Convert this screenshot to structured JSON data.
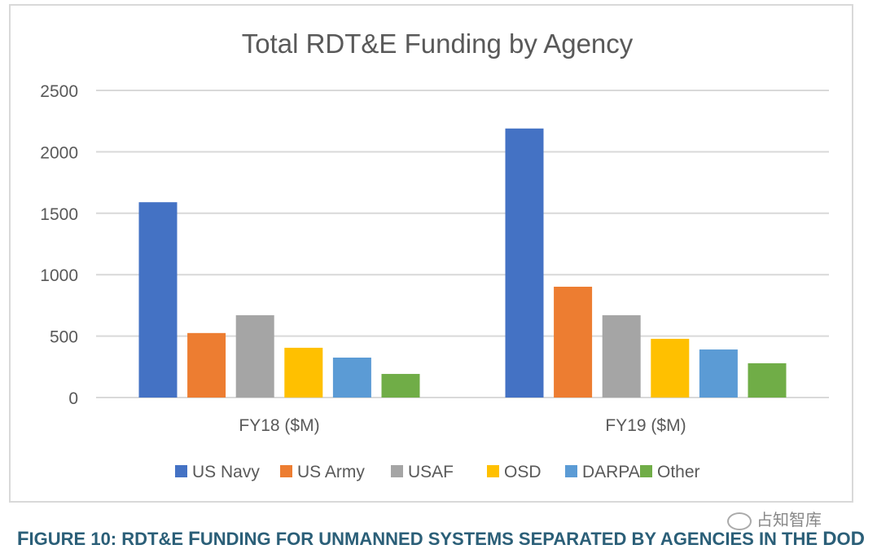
{
  "chart_data": {
    "type": "bar",
    "title": "Total RDT&E Funding by Agency",
    "xlabel": "",
    "ylabel": "",
    "ylim": [
      0,
      2500
    ],
    "yticks": [
      0,
      500,
      1000,
      1500,
      2000,
      2500
    ],
    "grid": true,
    "legend_position": "bottom",
    "categories": [
      "FY18 ($M)",
      "FY19 ($M)"
    ],
    "series": [
      {
        "name": "US Navy",
        "color": "#4472c4",
        "values": [
          1590,
          2190
        ]
      },
      {
        "name": "US Army",
        "color": "#ed7d31",
        "values": [
          525,
          902
        ]
      },
      {
        "name": "USAF",
        "color": "#a5a5a5",
        "values": [
          670,
          670
        ]
      },
      {
        "name": "OSD",
        "color": "#ffc000",
        "values": [
          405,
          478
        ]
      },
      {
        "name": "DARPA",
        "color": "#5b9bd5",
        "values": [
          325,
          391
        ]
      },
      {
        "name": "Other",
        "color": "#70ad47",
        "values": [
          192,
          279
        ]
      }
    ]
  },
  "caption": {
    "prefix_big": "F",
    "prefix_rest": "IGURE 10: RDT&E ",
    "f2_big": "F",
    "rest": "UNDING FOR UNMANNED SYSTEMS SEPARATED BY AGENCIES IN THE ",
    "d_big": "D",
    "o": "O",
    "d2_big": "D"
  },
  "watermark": {
    "text": "占知智库"
  }
}
